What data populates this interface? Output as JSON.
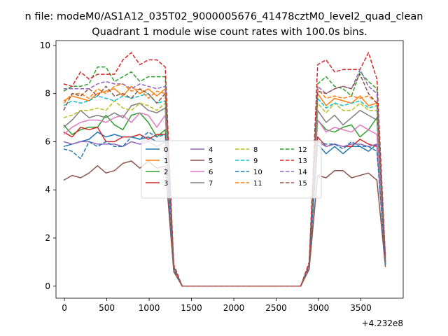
{
  "chart_data": {
    "type": "line",
    "suptitle": "n file: modeM0/AS1A12_035T02_9000005676_41478cztM0_level2_quad_clean",
    "title": "Quadrant 1 module wise count rates with 100.0s bins.",
    "xlabel": "",
    "ylabel": "",
    "x_offset_label": "+4.232e8",
    "xlim": [
      -100,
      4000
    ],
    "ylim": [
      -0.5,
      10.2
    ],
    "xticks": [
      0,
      500,
      1000,
      1500,
      2000,
      2500,
      3000,
      3500
    ],
    "yticks": [
      0,
      2,
      4,
      6,
      8,
      10
    ],
    "grid": false,
    "legend_position": "center",
    "x": [
      -10,
      90,
      190,
      290,
      390,
      490,
      590,
      690,
      790,
      890,
      990,
      1090,
      1190,
      1290,
      1390,
      1490,
      1590,
      1690,
      1790,
      1890,
      1990,
      2090,
      2190,
      2290,
      2390,
      2490,
      2590,
      2690,
      2790,
      2890,
      2990,
      3090,
      3190,
      3290,
      3390,
      3490,
      3590,
      3690,
      3790
    ],
    "series": [
      {
        "name": "0",
        "color": "#1f77b4",
        "dashed": false,
        "values": [
          5.8,
          5.9,
          6.0,
          6.1,
          6.4,
          6.2,
          6.3,
          6.2,
          6.2,
          6.1,
          6.2,
          6.0,
          6.0,
          0.7,
          0.0,
          0.0,
          0.0,
          0.0,
          0.0,
          0.0,
          0.0,
          0.0,
          0.0,
          0.0,
          0.0,
          0.0,
          0.0,
          0.0,
          0.0,
          0.8,
          5.9,
          5.5,
          5.8,
          5.5,
          5.8,
          5.8,
          5.6,
          5.9,
          0.9
        ]
      },
      {
        "name": "1",
        "color": "#ff7f0e",
        "dashed": false,
        "values": [
          7.7,
          7.9,
          7.8,
          7.7,
          8.0,
          8.1,
          8.2,
          7.9,
          8.3,
          8.0,
          8.2,
          7.9,
          8.2,
          0.8,
          0.0,
          0.0,
          0.0,
          0.0,
          0.0,
          0.0,
          0.0,
          0.0,
          0.0,
          0.0,
          0.0,
          0.0,
          0.0,
          0.0,
          0.0,
          0.9,
          8.0,
          7.5,
          7.8,
          7.7,
          7.6,
          7.9,
          7.5,
          7.6,
          1.0
        ]
      },
      {
        "name": "2",
        "color": "#2ca02c",
        "dashed": false,
        "values": [
          6.7,
          6.3,
          6.5,
          6.6,
          6.6,
          7.1,
          6.7,
          6.5,
          7.1,
          7.2,
          6.8,
          6.2,
          6.5,
          0.7,
          0.0,
          0.0,
          0.0,
          0.0,
          0.0,
          0.0,
          0.0,
          0.0,
          0.0,
          0.0,
          0.0,
          0.0,
          0.0,
          0.0,
          0.0,
          0.8,
          6.9,
          6.5,
          6.4,
          6.6,
          6.7,
          6.2,
          6.5,
          7.0,
          0.9
        ]
      },
      {
        "name": "3",
        "color": "#d62728",
        "dashed": false,
        "values": [
          6.4,
          6.2,
          6.6,
          6.5,
          6.6,
          6.0,
          6.0,
          6.2,
          6.2,
          6.3,
          6.1,
          6.3,
          6.3,
          0.7,
          0.0,
          0.0,
          0.0,
          0.0,
          0.0,
          0.0,
          0.0,
          0.0,
          0.0,
          0.0,
          0.0,
          0.0,
          0.0,
          0.0,
          0.0,
          0.8,
          6.2,
          5.8,
          5.9,
          5.8,
          5.8,
          6.1,
          5.9,
          5.8,
          0.9
        ]
      },
      {
        "name": "4",
        "color": "#9467bd",
        "dashed": false,
        "values": [
          6.0,
          5.9,
          6.0,
          6.0,
          5.9,
          5.9,
          5.9,
          5.8,
          6.0,
          5.9,
          6.0,
          5.8,
          6.0,
          0.7,
          0.0,
          0.0,
          0.0,
          0.0,
          0.0,
          0.0,
          0.0,
          0.0,
          0.0,
          0.0,
          0.0,
          0.0,
          0.0,
          0.0,
          0.0,
          0.8,
          6.0,
          5.8,
          5.9,
          5.8,
          5.9,
          5.9,
          5.8,
          5.9,
          0.9
        ]
      },
      {
        "name": "5",
        "color": "#8c564b",
        "dashed": false,
        "values": [
          4.4,
          4.6,
          4.5,
          4.7,
          5.0,
          4.7,
          4.8,
          5.1,
          5.2,
          4.9,
          5.2,
          4.9,
          5.0,
          0.6,
          0.0,
          0.0,
          0.0,
          0.0,
          0.0,
          0.0,
          0.0,
          0.0,
          0.0,
          0.0,
          0.0,
          0.0,
          0.0,
          0.0,
          0.0,
          0.7,
          4.6,
          4.5,
          4.8,
          4.8,
          4.5,
          4.6,
          4.7,
          4.4,
          0.8
        ]
      },
      {
        "name": "6",
        "color": "#e377c2",
        "dashed": false,
        "values": [
          6.3,
          6.6,
          6.8,
          6.9,
          6.9,
          6.8,
          7.0,
          7.1,
          6.8,
          7.2,
          7.1,
          6.6,
          7.1,
          0.7,
          0.0,
          0.0,
          0.0,
          0.0,
          0.0,
          0.0,
          0.0,
          0.0,
          0.0,
          0.0,
          0.0,
          0.0,
          0.0,
          0.0,
          0.0,
          0.8,
          6.9,
          6.4,
          6.6,
          6.5,
          6.4,
          6.7,
          6.5,
          6.3,
          0.9
        ]
      },
      {
        "name": "7",
        "color": "#7f7f7f",
        "dashed": false,
        "values": [
          6.6,
          6.9,
          7.3,
          7.0,
          7.1,
          7.0,
          7.2,
          7.0,
          7.5,
          7.6,
          7.3,
          7.2,
          7.4,
          0.8,
          0.0,
          0.0,
          0.0,
          0.0,
          0.0,
          0.0,
          0.0,
          0.0,
          0.0,
          0.0,
          0.0,
          0.0,
          0.0,
          0.0,
          0.0,
          0.9,
          7.3,
          6.8,
          7.1,
          6.7,
          7.0,
          7.3,
          7.1,
          6.9,
          1.0
        ]
      },
      {
        "name": "8",
        "color": "#bcbd22",
        "dashed": true,
        "values": [
          7.0,
          7.1,
          7.3,
          7.3,
          7.4,
          7.3,
          7.7,
          7.4,
          7.3,
          7.6,
          7.5,
          7.3,
          7.6,
          0.8,
          0.0,
          0.0,
          0.0,
          0.0,
          0.0,
          0.0,
          0.0,
          0.0,
          0.0,
          0.0,
          0.0,
          0.0,
          0.0,
          0.0,
          0.0,
          0.9,
          7.6,
          7.2,
          7.6,
          7.3,
          7.3,
          7.6,
          7.3,
          7.3,
          1.0
        ]
      },
      {
        "name": "9",
        "color": "#17becf",
        "dashed": true,
        "values": [
          7.5,
          7.7,
          7.6,
          7.7,
          7.9,
          7.8,
          7.7,
          7.9,
          7.8,
          7.9,
          8.0,
          7.6,
          7.7,
          0.8,
          0.0,
          0.0,
          0.0,
          0.0,
          0.0,
          0.0,
          0.0,
          0.0,
          0.0,
          0.0,
          0.0,
          0.0,
          0.0,
          0.0,
          0.0,
          0.9,
          7.8,
          7.4,
          7.6,
          7.5,
          7.6,
          7.7,
          7.4,
          7.5,
          1.0
        ]
      },
      {
        "name": "10",
        "color": "#1f77b4",
        "dashed": true,
        "values": [
          5.7,
          5.6,
          5.3,
          6.0,
          5.8,
          6.0,
          5.8,
          5.8,
          6.2,
          6.1,
          6.4,
          6.2,
          6.3,
          0.7,
          0.0,
          0.0,
          0.0,
          0.0,
          0.0,
          0.0,
          0.0,
          0.0,
          0.0,
          0.0,
          0.0,
          0.0,
          0.0,
          0.0,
          0.0,
          0.8,
          6.0,
          5.9,
          5.9,
          5.7,
          6.0,
          5.8,
          5.8,
          5.6,
          0.9
        ]
      },
      {
        "name": "11",
        "color": "#ff7f0e",
        "dashed": true,
        "values": [
          7.6,
          8.0,
          8.0,
          7.8,
          8.2,
          8.0,
          8.3,
          8.4,
          8.1,
          8.2,
          7.8,
          8.1,
          8.0,
          0.8,
          0.0,
          0.0,
          0.0,
          0.0,
          0.0,
          0.0,
          0.0,
          0.0,
          0.0,
          0.0,
          0.0,
          0.0,
          0.0,
          0.0,
          0.0,
          0.9,
          8.2,
          7.8,
          7.9,
          7.8,
          7.9,
          7.8,
          7.9,
          7.6,
          1.0
        ]
      },
      {
        "name": "12",
        "color": "#2ca02c",
        "dashed": true,
        "values": [
          8.1,
          8.3,
          8.3,
          8.4,
          9.1,
          9.1,
          8.5,
          8.7,
          8.9,
          8.5,
          8.7,
          8.7,
          8.7,
          0.8,
          0.0,
          0.0,
          0.0,
          0.0,
          0.0,
          0.0,
          0.0,
          0.0,
          0.0,
          0.0,
          0.0,
          0.0,
          0.0,
          0.0,
          0.0,
          0.9,
          8.4,
          8.7,
          8.3,
          8.2,
          7.9,
          8.9,
          8.5,
          8.2,
          1.1
        ]
      },
      {
        "name": "13",
        "color": "#d62728",
        "dashed": true,
        "values": [
          8.4,
          8.3,
          8.9,
          8.6,
          8.8,
          8.8,
          8.8,
          9.4,
          9.7,
          9.2,
          9.4,
          9.4,
          9.1,
          0.9,
          0.0,
          0.0,
          0.0,
          0.0,
          0.0,
          0.0,
          0.0,
          0.0,
          0.0,
          0.0,
          0.0,
          0.0,
          0.0,
          0.0,
          0.0,
          1.0,
          9.2,
          9.4,
          8.9,
          9.0,
          9.0,
          9.0,
          9.7,
          8.6,
          1.2
        ]
      },
      {
        "name": "14",
        "color": "#9467bd",
        "dashed": true,
        "values": [
          8.2,
          8.2,
          8.2,
          8.2,
          8.4,
          8.5,
          8.4,
          8.4,
          8.2,
          8.4,
          8.3,
          8.2,
          8.3,
          0.8,
          0.0,
          0.0,
          0.0,
          0.0,
          0.0,
          0.0,
          0.0,
          0.0,
          0.0,
          0.0,
          0.0,
          0.0,
          0.0,
          0.0,
          0.0,
          0.9,
          8.3,
          8.0,
          8.2,
          8.3,
          8.2,
          9.0,
          8.3,
          8.0,
          1.1
        ]
      },
      {
        "name": "15",
        "color": "#8c564b",
        "dashed": true,
        "values": [
          7.3,
          8.0,
          7.9,
          8.2,
          7.9,
          8.3,
          7.9,
          8.0,
          7.8,
          8.2,
          8.0,
          7.6,
          8.0,
          0.8,
          0.0,
          0.0,
          0.0,
          0.0,
          0.0,
          0.0,
          0.0,
          0.0,
          0.0,
          0.0,
          0.0,
          0.0,
          0.0,
          0.0,
          0.0,
          0.9,
          8.1,
          8.0,
          8.2,
          8.3,
          8.2,
          8.8,
          8.0,
          7.6,
          1.0
        ]
      }
    ]
  }
}
